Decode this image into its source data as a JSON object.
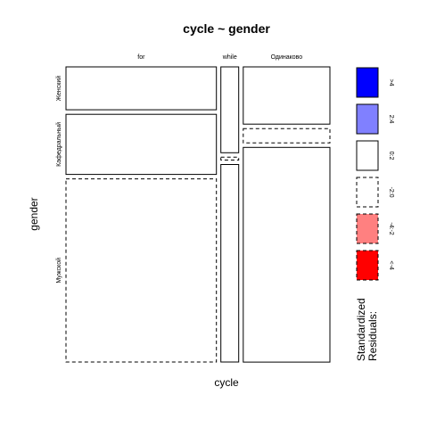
{
  "chart_data": {
    "type": "mosaic",
    "title": "cycle ~ gender",
    "xlabel": "cycle",
    "ylabel": "gender",
    "x_categories": [
      "for",
      "while",
      "Одинаково"
    ],
    "y_categories": [
      "Женский",
      "Кафедральный",
      "Мужской"
    ],
    "column_shares": [
      0.59,
      0.07,
      0.34
    ],
    "cells": [
      {
        "x": "for",
        "y": "Женский",
        "share": 0.15,
        "residual_class": "0:2"
      },
      {
        "x": "for",
        "y": "Кафедральный",
        "share": 0.21,
        "residual_class": "0:2"
      },
      {
        "x": "for",
        "y": "Мужской",
        "share": 0.64,
        "residual_class": "-2:0"
      },
      {
        "x": "while",
        "y": "Женский",
        "share": 0.3,
        "residual_class": "0:2"
      },
      {
        "x": "while",
        "y": "Кафедральный",
        "share": 0.01,
        "residual_class": "-2:0"
      },
      {
        "x": "while",
        "y": "Мужской",
        "share": 0.69,
        "residual_class": "0:2"
      },
      {
        "x": "Одинаково",
        "y": "Женский",
        "share": 0.2,
        "residual_class": "0:2"
      },
      {
        "x": "Одинаково",
        "y": "Кафедральный",
        "share": 0.05,
        "residual_class": "-2:0"
      },
      {
        "x": "Одинаково",
        "y": "Мужской",
        "share": 0.75,
        "residual_class": "0:2"
      }
    ],
    "legend": {
      "title": "Standardized Residuals:",
      "placement": "right",
      "entries": [
        {
          "label": ">4",
          "fill": "#0000ff",
          "dashed": false
        },
        {
          "label": "2:4",
          "fill": "#8080ff",
          "dashed": false
        },
        {
          "label": "0:2",
          "fill": "#ffffff",
          "dashed": false
        },
        {
          "label": "-2:0",
          "fill": "#ffffff",
          "dashed": true
        },
        {
          "label": "-4:-2",
          "fill": "#ff8080",
          "dashed": true
        },
        {
          "label": "<-4",
          "fill": "#ff0000",
          "dashed": true
        }
      ]
    }
  }
}
